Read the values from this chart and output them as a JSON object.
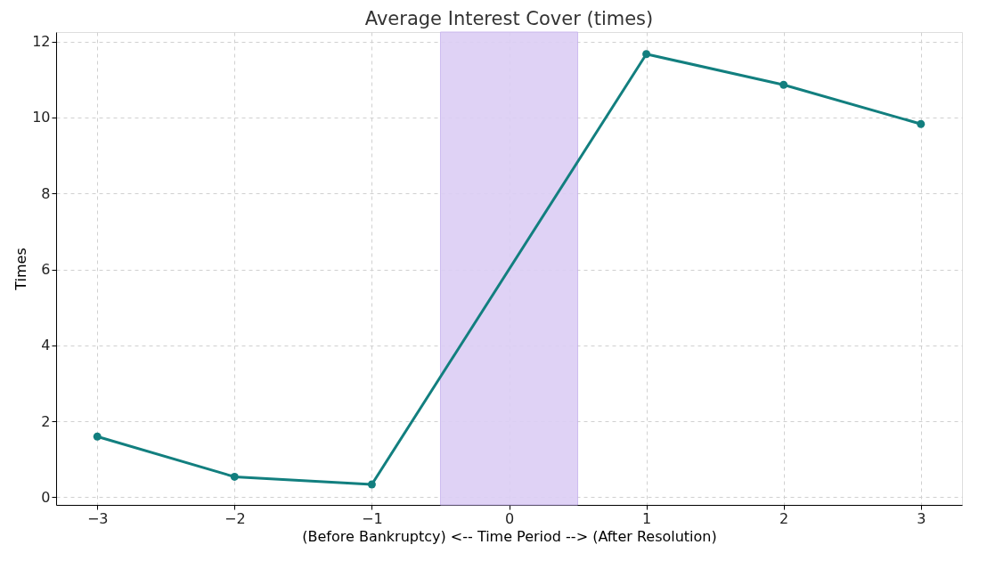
{
  "chart_data": {
    "type": "line",
    "title": "Average Interest Cover (times)",
    "xlabel": "(Before Bankruptcy) <-- Time Period --> (After Resolution)",
    "ylabel": "Times",
    "x": [
      -3,
      -2,
      -1,
      1,
      2,
      3
    ],
    "series": [
      {
        "color": "#127f7f",
        "values": [
          1.6,
          0.54,
          0.34,
          11.67,
          10.86,
          9.83
        ]
      }
    ],
    "xlim": [
      -3.3,
      3.3
    ],
    "ylim": [
      -0.2,
      12.25
    ],
    "xticks": [
      {
        "value": -3,
        "label": "−3"
      },
      {
        "value": -2,
        "label": "−2"
      },
      {
        "value": -1,
        "label": "−1"
      },
      0,
      1,
      2,
      3
    ],
    "yticks": [
      0,
      2,
      4,
      6,
      8,
      10,
      12
    ],
    "bands": [
      {
        "axis": "x",
        "from": -0.5,
        "to": 0.5,
        "color": "#dccef5"
      }
    ],
    "grid": true,
    "marker": "circle",
    "line_style": "solid"
  }
}
